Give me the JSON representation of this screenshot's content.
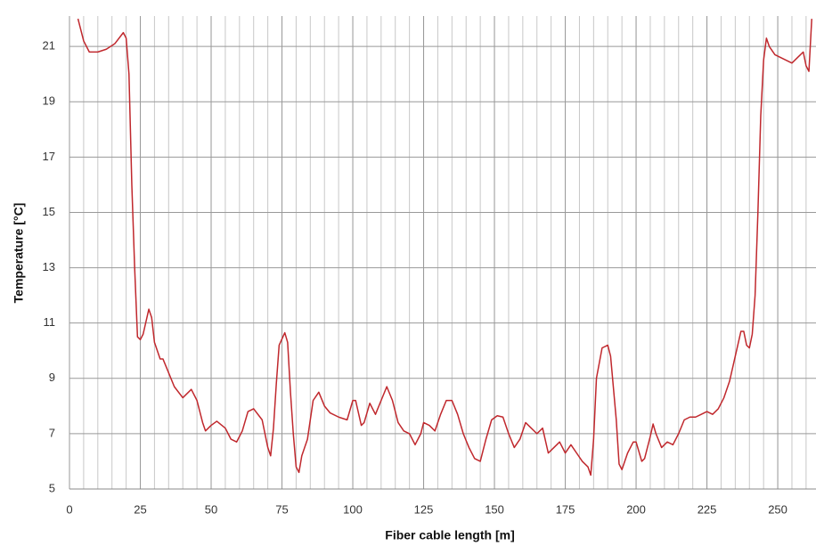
{
  "chart_data": {
    "type": "line",
    "x_label": "Fiber cable length [m]",
    "y_label": "Temperature [°C]",
    "xlim": [
      0,
      263.5
    ],
    "ylim": [
      5,
      22.1
    ],
    "xticks": [
      0,
      25,
      50,
      75,
      100,
      125,
      150,
      175,
      200,
      225,
      250
    ],
    "yticks": [
      5,
      7,
      9,
      11,
      13,
      15,
      17,
      19,
      21
    ],
    "grid": true,
    "minor_grid_step": 5,
    "series": [
      {
        "color": "#c0282d",
        "x": [
          3,
          5,
          7,
          10,
          13,
          16,
          19,
          20,
          21,
          22,
          23,
          24,
          25,
          26,
          28,
          29,
          30,
          32,
          33,
          35,
          37,
          40,
          43,
          45,
          47,
          48,
          50,
          52,
          55,
          57,
          59,
          61,
          63,
          65,
          68,
          70,
          71,
          72,
          73,
          74,
          76,
          77,
          78,
          79,
          80,
          81,
          82,
          84,
          86,
          88,
          90,
          92,
          95,
          98,
          100,
          101,
          103,
          104,
          106,
          108,
          110,
          112,
          114,
          116,
          118,
          120,
          122,
          124,
          125,
          127,
          129,
          131,
          133,
          135,
          137,
          139,
          141,
          143,
          145,
          147,
          149,
          151,
          153,
          155,
          157,
          159,
          161,
          163,
          165,
          167,
          169,
          171,
          173,
          175,
          177,
          179,
          181,
          183,
          184,
          185,
          186,
          188,
          190,
          191,
          193,
          194,
          195,
          197,
          199,
          200,
          202,
          203,
          205,
          206,
          207,
          209,
          211,
          213,
          215,
          217,
          219,
          221,
          223,
          225,
          227,
          229,
          231,
          233,
          235,
          237,
          238,
          239,
          240,
          241,
          242,
          243,
          244,
          245,
          246,
          247,
          249,
          251,
          253,
          255,
          257,
          259,
          260,
          261,
          262
        ],
        "values": [
          22.0,
          21.2,
          20.8,
          20.8,
          20.9,
          21.1,
          21.5,
          21.3,
          20,
          16,
          13,
          10.5,
          10.4,
          10.6,
          11.5,
          11.2,
          10.3,
          9.7,
          9.7,
          9.2,
          8.7,
          8.3,
          8.6,
          8.2,
          7.4,
          7.1,
          7.3,
          7.45,
          7.2,
          6.8,
          6.7,
          7.1,
          7.8,
          7.9,
          7.5,
          6.5,
          6.2,
          7.2,
          8.8,
          10.2,
          10.65,
          10.3,
          8.5,
          7.0,
          5.8,
          5.6,
          6.2,
          6.8,
          8.2,
          8.5,
          8.0,
          7.75,
          7.6,
          7.5,
          8.2,
          8.2,
          7.3,
          7.4,
          8.1,
          7.7,
          8.2,
          8.7,
          8.2,
          7.4,
          7.1,
          7.0,
          6.6,
          7.0,
          7.4,
          7.3,
          7.1,
          7.7,
          8.2,
          8.2,
          7.7,
          7.0,
          6.5,
          6.1,
          6.0,
          6.8,
          7.5,
          7.65,
          7.6,
          7.0,
          6.5,
          6.8,
          7.4,
          7.2,
          7.0,
          7.2,
          6.3,
          6.5,
          6.7,
          6.3,
          6.6,
          6.3,
          6.0,
          5.8,
          5.5,
          6.8,
          9.0,
          10.1,
          10.2,
          9.8,
          7.5,
          5.9,
          5.7,
          6.3,
          6.7,
          6.7,
          6.0,
          6.1,
          6.9,
          7.35,
          7.0,
          6.5,
          6.7,
          6.6,
          7.0,
          7.5,
          7.6,
          7.6,
          7.7,
          7.8,
          7.7,
          7.9,
          8.3,
          8.9,
          9.8,
          10.7,
          10.7,
          10.2,
          10.1,
          10.6,
          12,
          15,
          18.5,
          20.5,
          21.3,
          21.0,
          20.7,
          20.6,
          20.5,
          20.4,
          20.6,
          20.8,
          20.3,
          20.1,
          22
        ]
      }
    ]
  }
}
